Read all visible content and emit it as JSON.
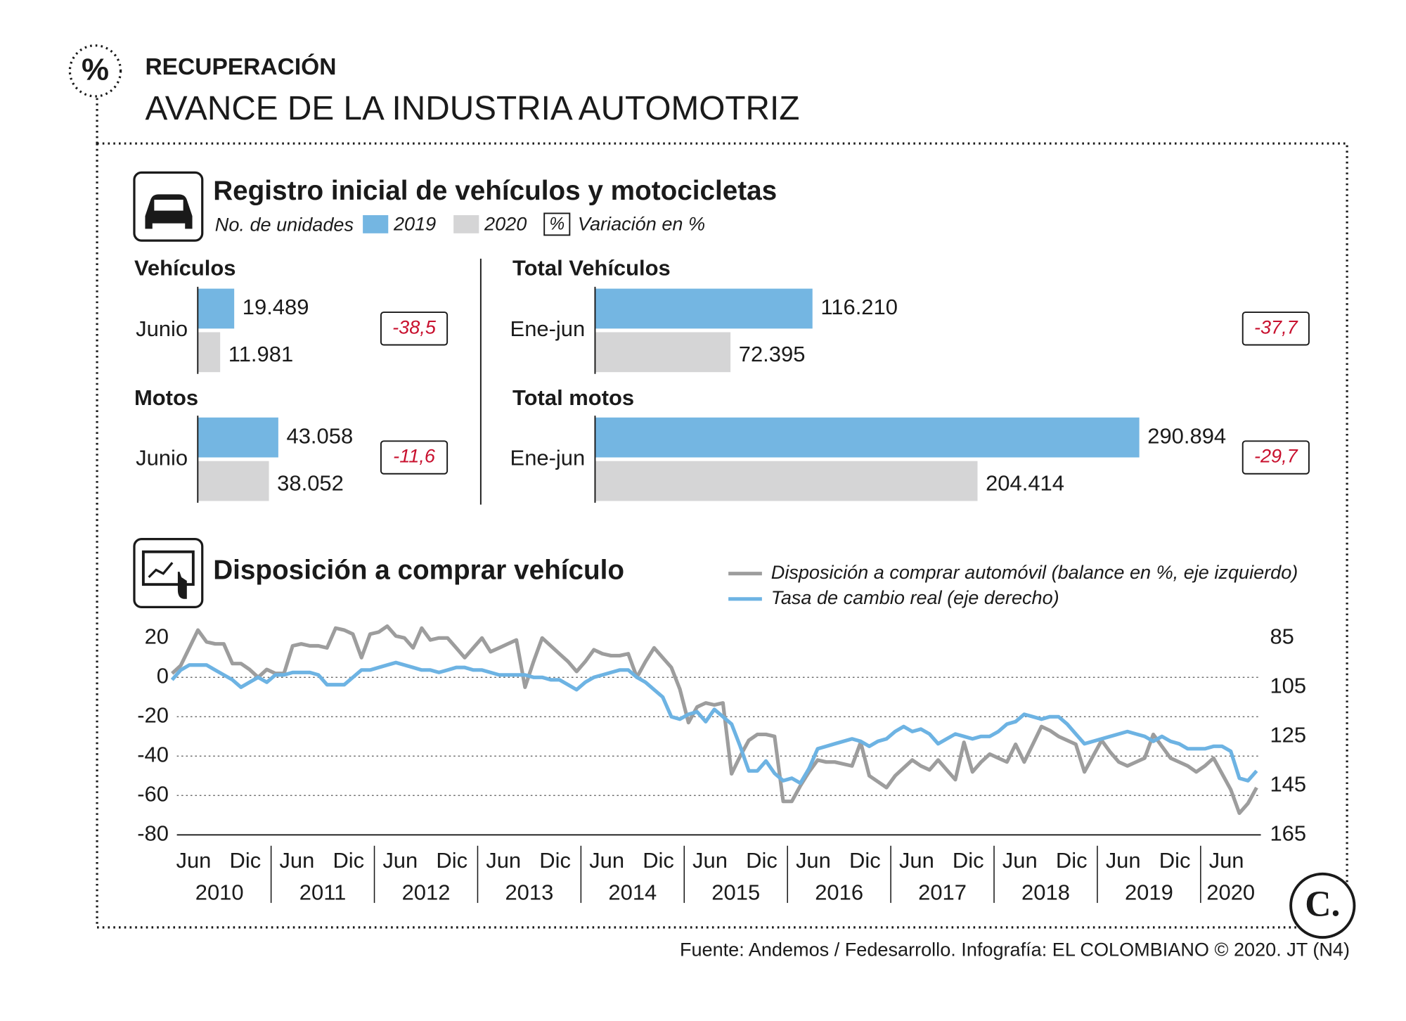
{
  "header": {
    "kicker": "RECUPERACIÓN",
    "title": "AVANCE DE LA INDUSTRIA AUTOMOTRIZ"
  },
  "chart_data": [
    {
      "type": "bar",
      "title": "Registro inicial de vehículos y motocicletas",
      "subtitle": "No. de unidades",
      "panels": [
        "Vehículos",
        "Motos",
        "Total Vehículos",
        "Total motos"
      ],
      "categories": [
        "Junio",
        "Junio",
        "Ene-jun",
        "Ene-jun"
      ],
      "series": [
        {
          "name": "2019",
          "color": "#74b6e2",
          "values": [
            19489,
            43058,
            116210,
            290894
          ],
          "value_labels": [
            "19.489",
            "43.058",
            "116.210",
            "290.894"
          ]
        },
        {
          "name": "2020",
          "color": "#d5d5d6",
          "values": [
            11981,
            38052,
            72395,
            204414
          ],
          "value_labels": [
            "11.981",
            "38.052",
            "72.395",
            "204.414"
          ]
        }
      ],
      "variation": {
        "symbol": "%",
        "name": "Variación en %",
        "color": "#c8102e",
        "values": [
          -38.5,
          -11.6,
          -37.7,
          -29.7
        ],
        "value_labels": [
          "-38,5",
          "-11,6",
          "-37,7",
          "-29,7"
        ]
      }
    },
    {
      "type": "line",
      "title": "Disposición a comprar vehículo",
      "x": [
        "2010-01",
        "2010-02",
        "2010-03",
        "2010-04",
        "2010-05",
        "2010-06",
        "2010-07",
        "2010-08",
        "2010-09",
        "2010-10",
        "2010-11",
        "2010-12",
        "2011-01",
        "2011-02",
        "2011-03",
        "2011-04",
        "2011-05",
        "2011-06",
        "2011-07",
        "2011-08",
        "2011-09",
        "2011-10",
        "2011-11",
        "2011-12",
        "2012-01",
        "2012-02",
        "2012-03",
        "2012-04",
        "2012-05",
        "2012-06",
        "2012-07",
        "2012-08",
        "2012-09",
        "2012-10",
        "2012-11",
        "2012-12",
        "2013-01",
        "2013-02",
        "2013-03",
        "2013-04",
        "2013-05",
        "2013-06",
        "2013-07",
        "2013-08",
        "2013-09",
        "2013-10",
        "2013-11",
        "2013-12",
        "2014-01",
        "2014-02",
        "2014-03",
        "2014-04",
        "2014-05",
        "2014-06",
        "2014-07",
        "2014-08",
        "2014-09",
        "2014-10",
        "2014-11",
        "2014-12",
        "2015-01",
        "2015-02",
        "2015-03",
        "2015-04",
        "2015-05",
        "2015-06",
        "2015-07",
        "2015-08",
        "2015-09",
        "2015-10",
        "2015-11",
        "2015-12",
        "2016-01",
        "2016-02",
        "2016-03",
        "2016-04",
        "2016-05",
        "2016-06",
        "2016-07",
        "2016-08",
        "2016-09",
        "2016-10",
        "2016-11",
        "2016-12",
        "2017-01",
        "2017-02",
        "2017-03",
        "2017-04",
        "2017-05",
        "2017-06",
        "2017-07",
        "2017-08",
        "2017-09",
        "2017-10",
        "2017-11",
        "2017-12",
        "2018-01",
        "2018-02",
        "2018-03",
        "2018-04",
        "2018-05",
        "2018-06",
        "2018-07",
        "2018-08",
        "2018-09",
        "2018-10",
        "2018-11",
        "2018-12",
        "2019-01",
        "2019-02",
        "2019-03",
        "2019-04",
        "2019-05",
        "2019-06",
        "2019-07",
        "2019-08",
        "2019-09",
        "2019-10",
        "2019-11",
        "2019-12",
        "2020-01",
        "2020-02",
        "2020-03",
        "2020-04",
        "2020-05",
        "2020-06",
        "2020-07"
      ],
      "series": [
        {
          "name": "Disposición a comprar automóvil (balance en %, eje izquierdo)",
          "color": "#9d9d9d",
          "values": [
            2,
            6,
            15,
            24,
            18,
            17,
            17,
            7,
            7,
            4,
            0,
            4,
            2,
            2,
            16,
            17,
            16,
            16,
            15,
            25,
            24,
            22,
            10,
            22,
            23,
            26,
            21,
            20,
            15,
            25,
            19,
            20,
            20,
            15,
            10,
            15,
            20,
            13,
            15,
            17,
            19,
            -5,
            8,
            20,
            16,
            12,
            8,
            3,
            8,
            14,
            12,
            11,
            11,
            12,
            0,
            8,
            15,
            10,
            5,
            -6,
            -23,
            -15,
            -13,
            -14,
            -13,
            -49,
            -40,
            -32,
            -29,
            -29,
            -30,
            -63,
            -63,
            -55,
            -48,
            -42,
            -43,
            -43,
            -44,
            -45,
            -33,
            -50,
            -53,
            -56,
            -50,
            -46,
            -42,
            -45,
            -47,
            -42,
            -47,
            -52,
            -33,
            -48,
            -43,
            -39,
            -41,
            -43,
            -34,
            -43,
            -34,
            -25,
            -27,
            -30,
            -32,
            -34,
            -48,
            -40,
            -32,
            -38,
            -43,
            -45,
            -43,
            -41,
            -29,
            -35,
            -41,
            -43,
            -45,
            -48,
            -45,
            -41,
            -49,
            -57,
            -69,
            -64,
            -56
          ]
        },
        {
          "name": "Tasa de cambio real (eje derecho)",
          "color": "#6db3e3",
          "axis": "y2",
          "values": [
            102,
            98,
            96,
            96,
            96,
            98,
            100,
            102,
            105,
            103,
            101,
            103,
            100,
            100,
            99,
            99,
            99,
            100,
            104,
            104,
            104,
            101,
            98,
            98,
            97,
            96,
            95,
            96,
            97,
            98,
            98,
            99,
            98,
            97,
            97,
            98,
            98,
            99,
            100,
            100,
            100,
            100,
            101,
            101,
            102,
            102,
            104,
            106,
            103,
            101,
            100,
            99,
            98,
            98,
            101,
            103,
            106,
            109,
            117,
            118,
            116,
            115,
            119,
            114,
            117,
            120,
            129,
            139,
            139,
            135,
            140,
            143,
            142,
            144,
            138,
            130,
            129,
            128,
            127,
            126,
            127,
            129,
            127,
            126,
            123,
            121,
            123,
            122,
            124,
            128,
            126,
            124,
            125,
            126,
            125,
            125,
            123,
            120,
            119,
            116,
            117,
            118,
            117,
            117,
            120,
            124,
            128,
            127,
            126,
            125,
            124,
            123,
            124,
            125,
            127,
            125,
            127,
            128,
            130,
            130,
            130,
            129,
            129,
            131,
            142,
            143,
            139
          ]
        }
      ],
      "ylim": [
        -80,
        20
      ],
      "yticks": [
        20,
        0,
        -20,
        -40,
        -60,
        -80
      ],
      "y2lim": [
        165,
        85
      ],
      "y2ticks": [
        85,
        105,
        125,
        145,
        165
      ],
      "xticks": [
        {
          "value": "2010-06",
          "label": "Jun"
        },
        {
          "value": "2010-12",
          "label": "Dic"
        },
        {
          "value": "2011-06",
          "label": "Jun"
        },
        {
          "value": "2011-12",
          "label": "Dic"
        },
        {
          "value": "2012-06",
          "label": "Jun"
        },
        {
          "value": "2012-12",
          "label": "Dic"
        },
        {
          "value": "2013-06",
          "label": "Jun"
        },
        {
          "value": "2013-12",
          "label": "Dic"
        },
        {
          "value": "2014-06",
          "label": "Jun"
        },
        {
          "value": "2014-12",
          "label": "Dic"
        },
        {
          "value": "2015-06",
          "label": "Jun"
        },
        {
          "value": "2015-12",
          "label": "Dic"
        },
        {
          "value": "2016-06",
          "label": "Jun"
        },
        {
          "value": "2016-12",
          "label": "Dic"
        },
        {
          "value": "2017-06",
          "label": "Jun"
        },
        {
          "value": "2017-12",
          "label": "Dic"
        },
        {
          "value": "2018-06",
          "label": "Jun"
        },
        {
          "value": "2018-12",
          "label": "Dic"
        },
        {
          "value": "2019-06",
          "label": "Jun"
        },
        {
          "value": "2019-12",
          "label": "Dic"
        },
        {
          "value": "2020-06",
          "label": "Jun"
        }
      ],
      "year_ticks": [
        2010,
        2011,
        2012,
        2013,
        2014,
        2015,
        2016,
        2017,
        2018,
        2019,
        2020
      ],
      "grid": true
    }
  ],
  "footer": {
    "source": "Fuente: Andemos / Fedesarrollo. Infografía: EL COLOMBIANO © 2020. JT (N4)",
    "logo": "C."
  }
}
